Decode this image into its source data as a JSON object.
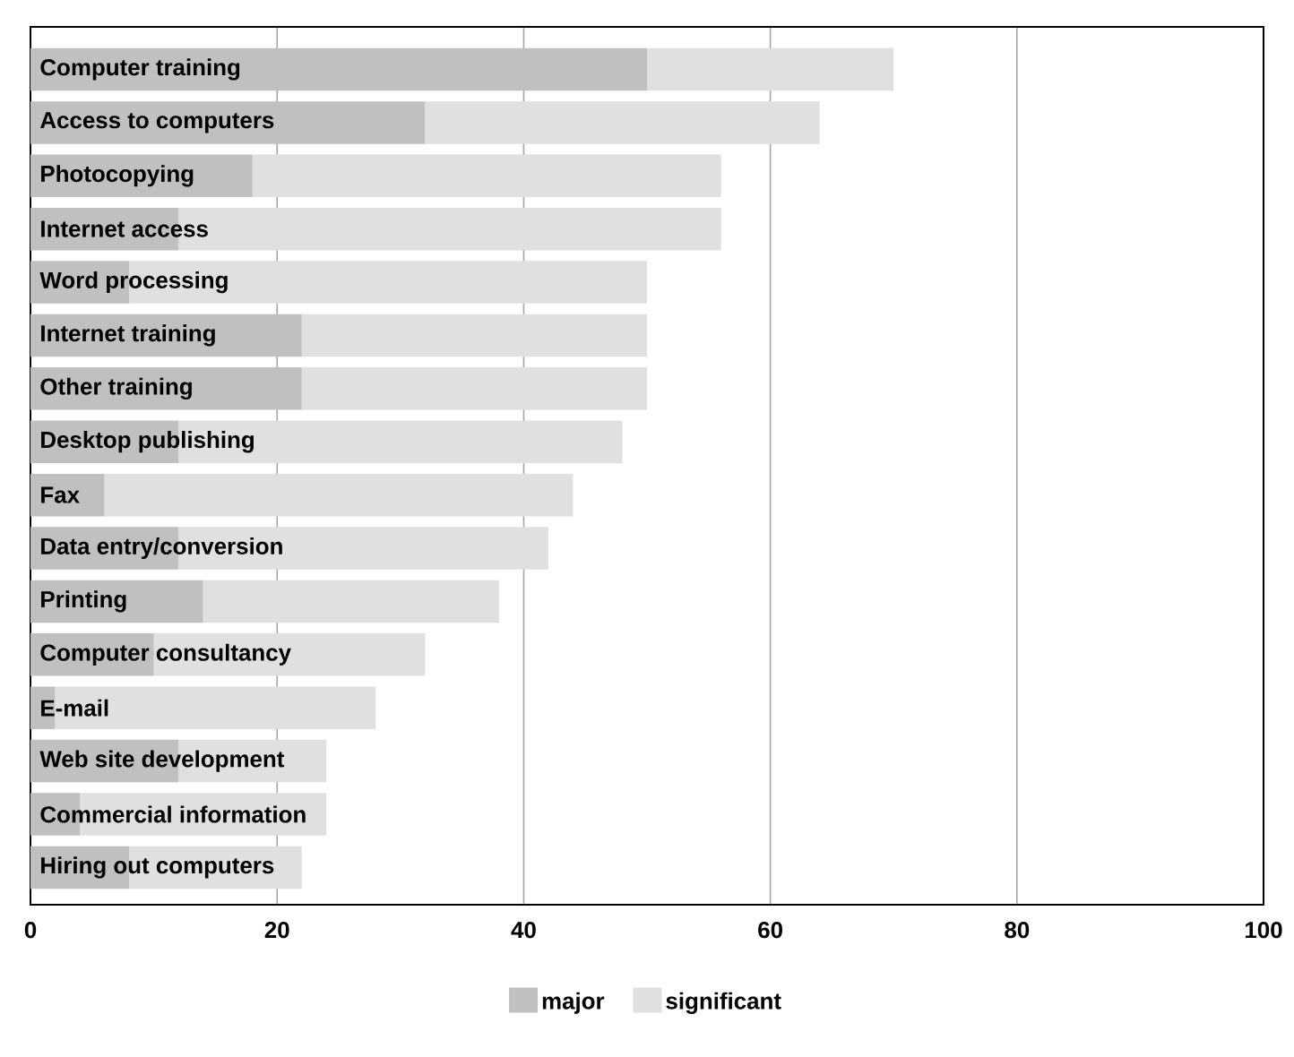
{
  "chart_data": {
    "type": "bar",
    "orientation": "horizontal",
    "stacked": true,
    "categories": [
      "Computer training",
      "Access to computers",
      "Photocopying",
      "Internet access",
      "Word processing",
      "Internet training",
      "Other training",
      "Desktop publishing",
      "Fax",
      "Data entry/conversion",
      "Printing",
      "Computer consultancy",
      "E-mail",
      "Web site development",
      "Commercial information",
      "Hiring out computers"
    ],
    "series": [
      {
        "name": "major",
        "color": "#c0c0c0",
        "values": [
          50,
          32,
          18,
          12,
          8,
          22,
          22,
          12,
          6,
          12,
          14,
          10,
          2,
          12,
          4,
          8
        ]
      },
      {
        "name": "significant",
        "color": "#e0e0e0",
        "values": [
          20,
          32,
          38,
          44,
          42,
          28,
          28,
          36,
          38,
          30,
          24,
          22,
          26,
          12,
          20,
          14
        ]
      }
    ],
    "xlim": [
      0,
      100
    ],
    "xticks": [
      0,
      20,
      40,
      60,
      80,
      100
    ],
    "grid": "x",
    "legend": "bottom"
  }
}
